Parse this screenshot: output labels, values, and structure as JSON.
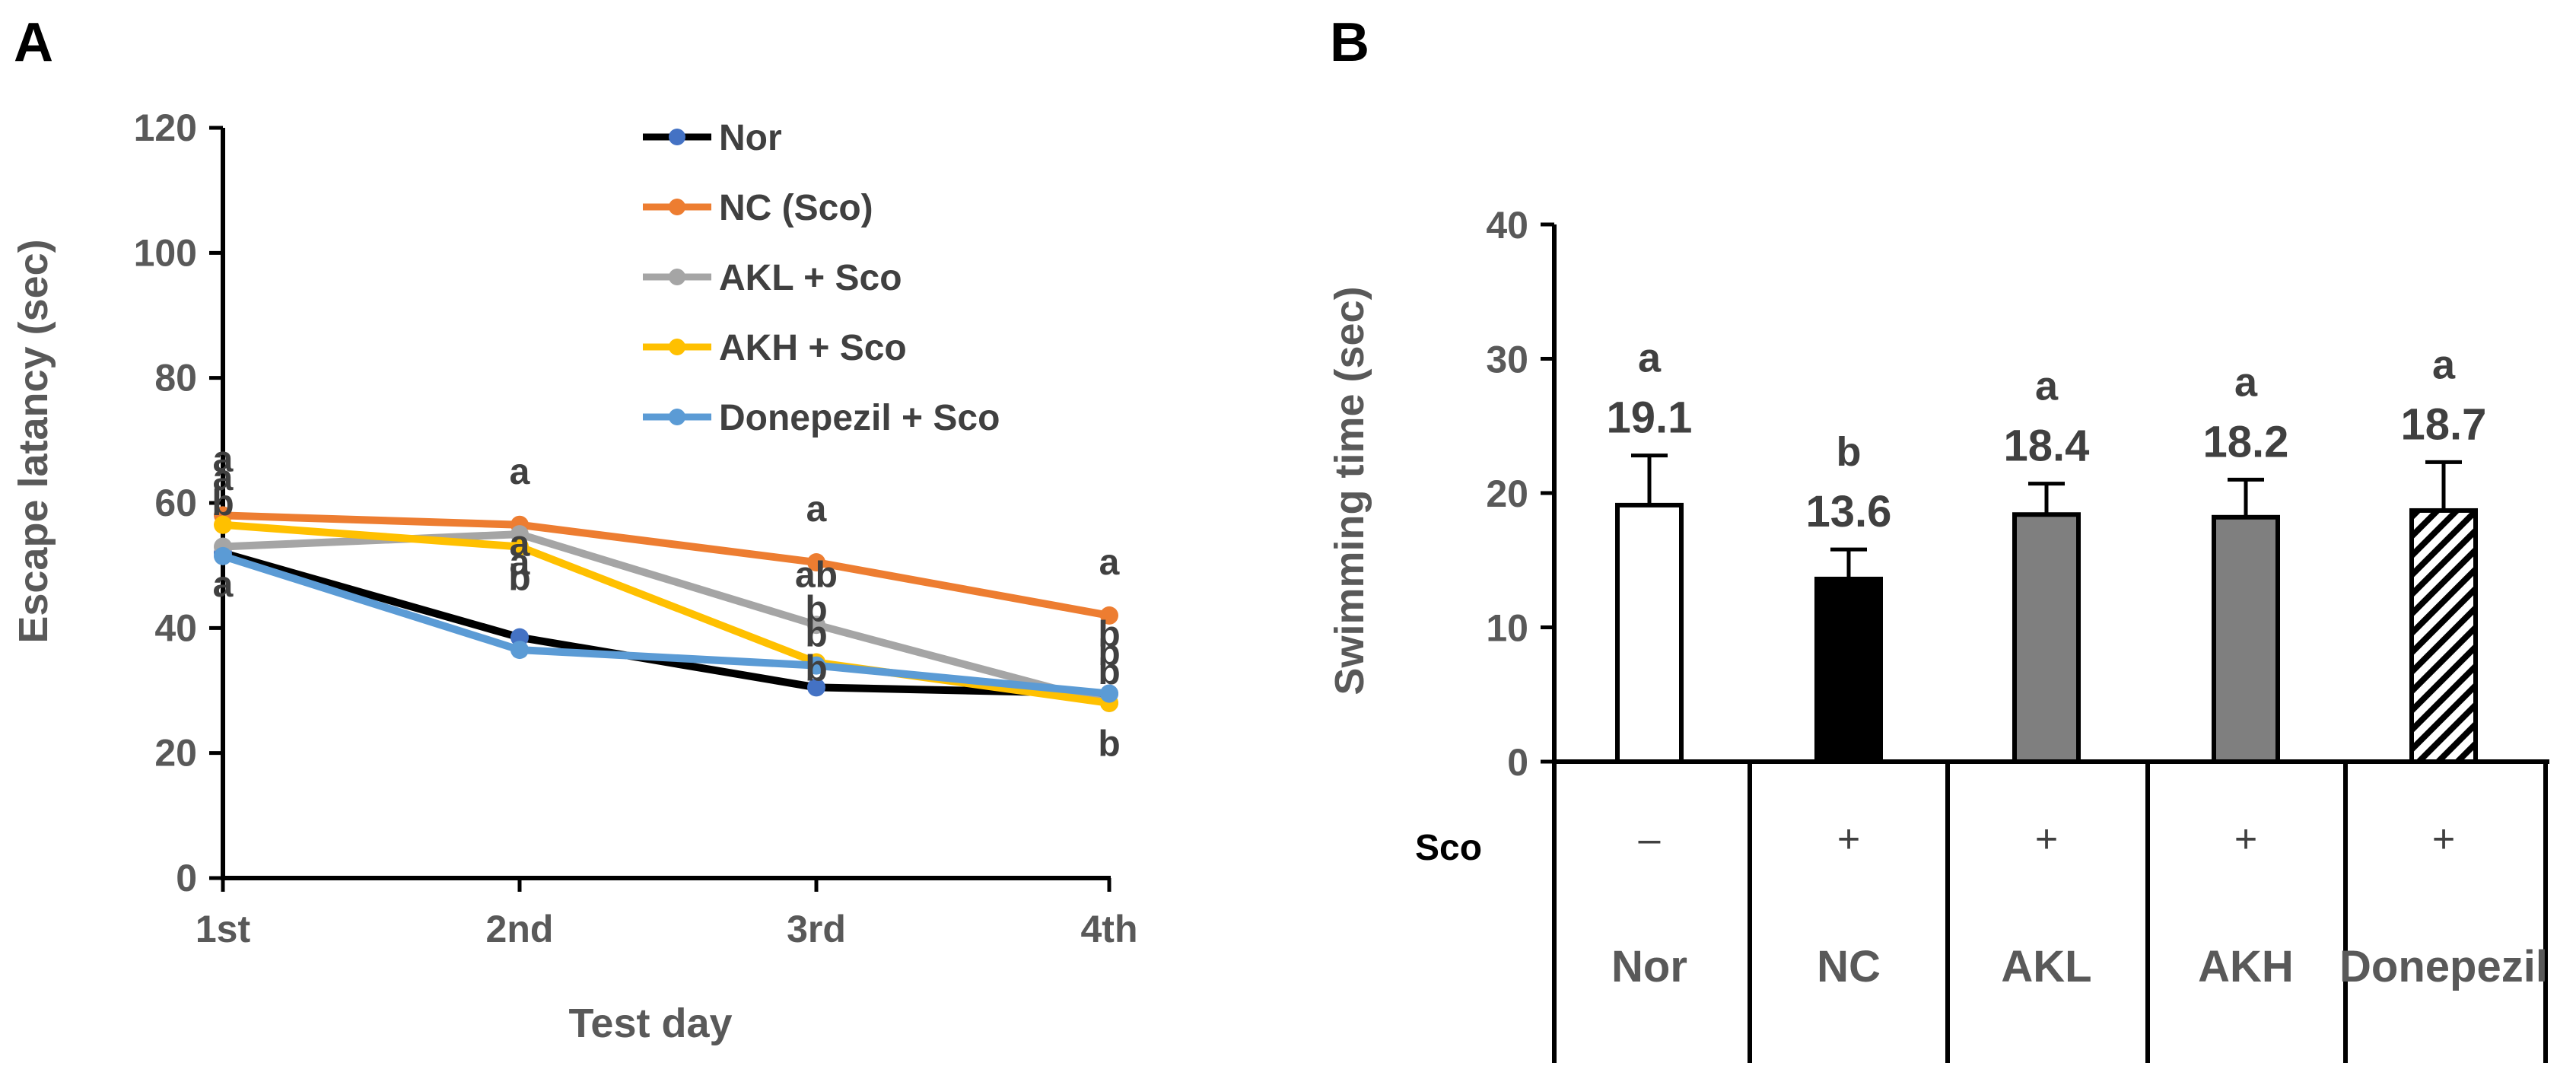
{
  "chart_data": [
    {
      "type": "line",
      "panel_label": "A",
      "title": "",
      "xlabel": "Test day",
      "ylabel": "Escape latancy (sec)",
      "categories": [
        "1st",
        "2nd",
        "3rd",
        "4th"
      ],
      "ylim": [
        0,
        120
      ],
      "yticks": [
        0,
        20,
        40,
        60,
        80,
        100,
        120
      ],
      "legend_position": "top-center",
      "series": [
        {
          "name": "Nor",
          "values": [
            52,
            38.5,
            30.5,
            29.5
          ],
          "line_color": "#000000",
          "marker_color": "#4472c4"
        },
        {
          "name": "NC (Sco)",
          "values": [
            58,
            56.5,
            50.5,
            42
          ],
          "line_color": "#ed7d31",
          "marker_color": "#ed7d31"
        },
        {
          "name": "AKL + Sco",
          "values": [
            53,
            55,
            40.5,
            28
          ],
          "line_color": "#a5a5a5",
          "marker_color": "#a5a5a5"
        },
        {
          "name": "AKH + Sco",
          "values": [
            56.5,
            53,
            34.5,
            28
          ],
          "line_color": "#ffc000",
          "marker_color": "#ffc000"
        },
        {
          "name": "Donepezil + Sco",
          "values": [
            51.5,
            36.5,
            34,
            29.5
          ],
          "line_color": "#5b9bd5",
          "marker_color": "#5b9bd5"
        }
      ],
      "annotations": [
        {
          "text": "a",
          "x": "1st",
          "y": 67
        },
        {
          "text": "a",
          "x": "1st",
          "y": 64
        },
        {
          "text": "b",
          "x": "1st",
          "y": 60
        },
        {
          "text": "a",
          "x": "1st",
          "y": 47
        },
        {
          "text": "a",
          "x": "2nd",
          "y": 65
        },
        {
          "text": "a",
          "x": "2nd",
          "y": 53.5
        },
        {
          "text": "a",
          "x": "2nd",
          "y": 50.5
        },
        {
          "text": "b",
          "x": "2nd",
          "y": 48
        },
        {
          "text": "a",
          "x": "3rd",
          "y": 59
        },
        {
          "text": "ab",
          "x": "3rd",
          "y": 48.5
        },
        {
          "text": "b",
          "x": "3rd",
          "y": 43
        },
        {
          "text": "b",
          "x": "3rd",
          "y": 39
        },
        {
          "text": "b",
          "x": "3rd",
          "y": 33.5
        },
        {
          "text": "a",
          "x": "4th",
          "y": 50.5
        },
        {
          "text": "b",
          "x": "4th",
          "y": 39
        },
        {
          "text": "b",
          "x": "4th",
          "y": 36
        },
        {
          "text": "b",
          "x": "4th",
          "y": 33
        },
        {
          "text": "b",
          "x": "4th",
          "y": 21.5
        }
      ]
    },
    {
      "type": "bar",
      "panel_label": "B",
      "title": "",
      "xlabel": "",
      "ylabel": "Swimming time (sec)",
      "categories": [
        "Nor",
        "NC",
        "AKL",
        "AKH",
        "Donepezil"
      ],
      "values": [
        19.1,
        13.6,
        18.4,
        18.2,
        18.7
      ],
      "errors": [
        3.7,
        2.2,
        2.3,
        2.8,
        3.6
      ],
      "value_labels": [
        "19.1",
        "13.6",
        "18.4",
        "18.2",
        "18.7"
      ],
      "significance": [
        "a",
        "b",
        "a",
        "a",
        "a"
      ],
      "fills": [
        "white",
        "black",
        "gray",
        "gray",
        "hatched"
      ],
      "colors": {
        "white": "#ffffff",
        "black": "#000000",
        "gray": "#7f7f7f"
      },
      "ylim": [
        0,
        40
      ],
      "yticks": [
        0,
        10,
        20,
        30,
        40
      ],
      "sco_label": "Sco",
      "sco_signs": [
        "–",
        "+",
        "+",
        "+",
        "+"
      ]
    }
  ]
}
